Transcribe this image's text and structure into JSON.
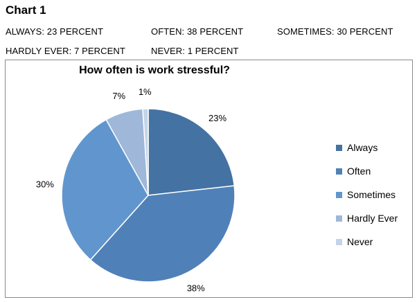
{
  "heading": "Chart 1",
  "summary": [
    "ALWAYS: 23 PERCENT",
    "OFTEN: 38 PERCENT",
    "SOMETIMES: 30 PERCENT",
    "HARDLY EVER: 7 PERCENT",
    "NEVER: 1 PERCENT"
  ],
  "chart_data": {
    "type": "pie",
    "title": "How often is work stressful?",
    "categories": [
      "Always",
      "Often",
      "Sometimes",
      "Hardly Ever",
      "Never"
    ],
    "values": [
      23,
      38,
      30,
      7,
      1
    ],
    "labels": [
      "23%",
      "38%",
      "30%",
      "7%",
      "1%"
    ],
    "colors": [
      "#4472a3",
      "#5080b8",
      "#6096cd",
      "#9fb7d9",
      "#c4d4e8"
    ],
    "legend_position": "right",
    "start_angle": "12 o'clock",
    "direction": "clockwise"
  }
}
